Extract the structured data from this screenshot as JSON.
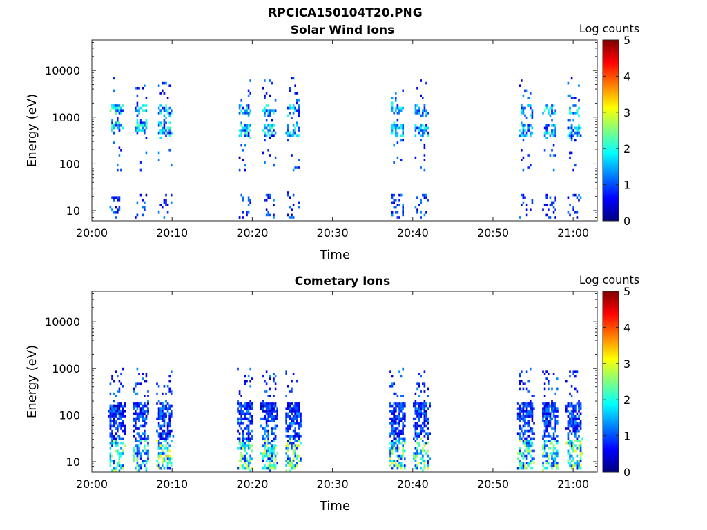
{
  "figure_title": "RPCICA150104T20.PNG",
  "colors": {
    "colormap": [
      "#00007f",
      "#0000ff",
      "#007fff",
      "#00ffff",
      "#7fff7f",
      "#ffff00",
      "#ff7f00",
      "#ff0000",
      "#7f0000"
    ]
  },
  "chart_data": [
    {
      "type": "heatmap",
      "title": "Solar Wind Ions",
      "xlabel": "Time",
      "ylabel": "Energy (eV)",
      "xlim": [
        "20:00",
        "21:03"
      ],
      "xticks": [
        "20:00",
        "20:10",
        "20:20",
        "20:30",
        "20:40",
        "20:50",
        "21:00"
      ],
      "ylim": [
        6,
        45000
      ],
      "yscale": "log",
      "yticks": [
        10,
        100,
        1000,
        10000
      ],
      "yticklabels": [
        "10",
        "100",
        "1000",
        "10000"
      ],
      "colorbar": {
        "label": "Log counts",
        "range": [
          0,
          5
        ],
        "ticks": [
          "0",
          "1",
          "2",
          "3",
          "4",
          "5"
        ]
      },
      "bursts": [
        {
          "time": "20:03",
          "peak_energy": [
            650,
            1600
          ],
          "peak_level": 2.0
        },
        {
          "time": "20:06",
          "peak_energy": [
            650,
            1600
          ],
          "peak_level": 1.8
        },
        {
          "time": "20:09",
          "peak_energy": [
            600,
            1500
          ],
          "peak_level": 1.8
        },
        {
          "time": "20:19",
          "peak_energy": [
            550,
            1500
          ],
          "peak_level": 1.8
        },
        {
          "time": "20:22",
          "peak_energy": [
            550,
            1500
          ],
          "peak_level": 1.6
        },
        {
          "time": "20:25",
          "peak_energy": [
            550,
            1500
          ],
          "peak_level": 1.6
        },
        {
          "time": "20:38",
          "peak_energy": [
            550,
            1500
          ],
          "peak_level": 1.5
        },
        {
          "time": "20:41",
          "peak_energy": [
            550,
            1500
          ],
          "peak_level": 1.5
        },
        {
          "time": "20:54",
          "peak_energy": [
            550,
            1500
          ],
          "peak_level": 1.5
        },
        {
          "time": "20:57",
          "peak_energy": [
            550,
            1500
          ],
          "peak_level": 1.6
        },
        {
          "time": "21:00",
          "peak_energy": [
            550,
            1500
          ],
          "peak_level": 1.6
        }
      ]
    },
    {
      "type": "heatmap",
      "title": "Cometary Ions",
      "xlabel": "Time",
      "ylabel": "Energy (eV)",
      "xlim": [
        "20:00",
        "21:03"
      ],
      "xticks": [
        "20:00",
        "20:10",
        "20:20",
        "20:30",
        "20:40",
        "20:50",
        "21:00"
      ],
      "ylim": [
        6,
        45000
      ],
      "yscale": "log",
      "yticks": [
        10,
        100,
        1000,
        10000
      ],
      "yticklabels": [
        "10",
        "100",
        "1000",
        "10000"
      ],
      "colorbar": {
        "label": "Log counts",
        "range": [
          0,
          5
        ],
        "ticks": [
          "0",
          "1",
          "2",
          "3",
          "4",
          "5"
        ]
      },
      "bursts": [
        {
          "time": "20:03",
          "peak_energy": [
            10,
            150
          ],
          "peak_level": 2.4
        },
        {
          "time": "20:06",
          "peak_energy": [
            10,
            150
          ],
          "peak_level": 2.2
        },
        {
          "time": "20:09",
          "peak_energy": [
            10,
            150
          ],
          "peak_level": 2.8
        },
        {
          "time": "20:19",
          "peak_energy": [
            10,
            150
          ],
          "peak_level": 2.4
        },
        {
          "time": "20:22",
          "peak_energy": [
            10,
            150
          ],
          "peak_level": 2.6
        },
        {
          "time": "20:25",
          "peak_energy": [
            10,
            150
          ],
          "peak_level": 2.4
        },
        {
          "time": "20:38",
          "peak_energy": [
            10,
            150
          ],
          "peak_level": 2.4
        },
        {
          "time": "20:41",
          "peak_energy": [
            10,
            150
          ],
          "peak_level": 2.6
        },
        {
          "time": "20:54",
          "peak_energy": [
            10,
            150
          ],
          "peak_level": 2.4
        },
        {
          "time": "20:57",
          "peak_energy": [
            10,
            150
          ],
          "peak_level": 2.8
        },
        {
          "time": "21:00",
          "peak_energy": [
            10,
            150
          ],
          "peak_level": 2.6
        }
      ]
    }
  ]
}
